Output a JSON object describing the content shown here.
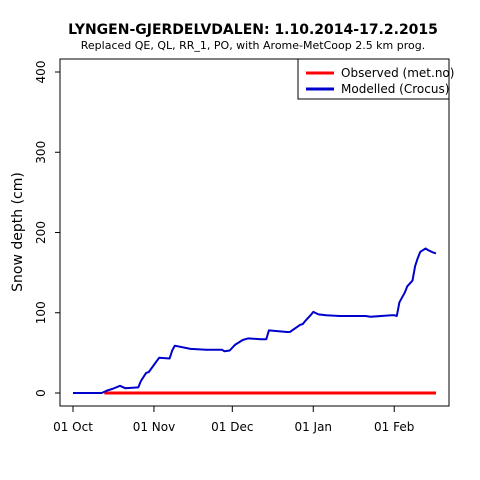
{
  "chart_data": {
    "type": "line",
    "title": "LYNGEN-GJERDELVDALEN: 1.10.2014-17.2.2015",
    "subtitle": "Replaced QE, QL, RR_1, PO,  with Arome-MetCoop 2.5 km prog.",
    "ylabel": "Snow depth (cm)",
    "xlabel": "",
    "xlim": [
      "2014-10-01",
      "2015-02-17"
    ],
    "ylim": [
      0,
      400
    ],
    "x_ticks": [
      {
        "date": "2014-10-01",
        "label": "01 Oct"
      },
      {
        "date": "2014-11-01",
        "label": "01 Nov"
      },
      {
        "date": "2014-12-01",
        "label": "01 Dec"
      },
      {
        "date": "2015-01-01",
        "label": "01 Jan"
      },
      {
        "date": "2015-02-01",
        "label": "01 Feb"
      }
    ],
    "y_ticks": [
      0,
      100,
      200,
      300,
      400
    ],
    "grid": false,
    "legend": {
      "position": "top-right",
      "entries": [
        "Observed (met.no)",
        "Modelled (Crocus)"
      ]
    },
    "colors": {
      "observed": "#ff0000",
      "modelled": "#0000cc"
    },
    "series": [
      {
        "name": "Observed (met.no)",
        "x": [
          "2014-10-13",
          "2015-02-17"
        ],
        "y": [
          0,
          0
        ]
      },
      {
        "name": "Modelled (Crocus)",
        "x": [
          "2014-10-01",
          "2014-10-12",
          "2014-10-14",
          "2014-10-16",
          "2014-10-19",
          "2014-10-21",
          "2014-10-26",
          "2014-10-27",
          "2014-10-29",
          "2014-10-30",
          "2014-11-03",
          "2014-11-07",
          "2014-11-08",
          "2014-11-09",
          "2014-11-15",
          "2014-11-21",
          "2014-11-27",
          "2014-11-28",
          "2014-11-30",
          "2014-12-02",
          "2014-12-05",
          "2014-12-07",
          "2014-12-12",
          "2014-12-14",
          "2014-12-15",
          "2014-12-22",
          "2014-12-23",
          "2014-12-27",
          "2014-12-28",
          "2014-12-29",
          "2014-12-31",
          "2015-01-01",
          "2015-01-03",
          "2015-01-06",
          "2015-01-11",
          "2015-01-21",
          "2015-01-23",
          "2015-01-31",
          "2015-02-01",
          "2015-02-02",
          "2015-02-03",
          "2015-02-05",
          "2015-02-06",
          "2015-02-08",
          "2015-02-09",
          "2015-02-10",
          "2015-02-11",
          "2015-02-13",
          "2015-02-14",
          "2015-02-16",
          "2015-02-17"
        ],
        "y": [
          0,
          0,
          3,
          5,
          9,
          6,
          7,
          15,
          25,
          26,
          44,
          43,
          53,
          59,
          55,
          54,
          54,
          52,
          53,
          60,
          66,
          68,
          67,
          67,
          78,
          76,
          76,
          85,
          86,
          90,
          97,
          101,
          98,
          97,
          96,
          96,
          95,
          97,
          97,
          96,
          113,
          125,
          133,
          140,
          158,
          168,
          176,
          180,
          178,
          175,
          174
        ]
      }
    ]
  }
}
